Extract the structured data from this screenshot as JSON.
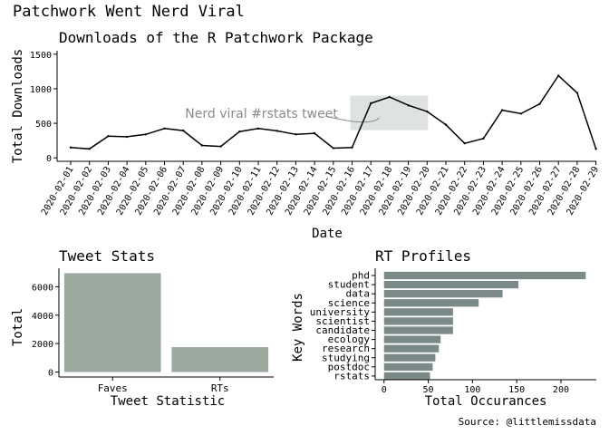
{
  "figure": {
    "title": "Patchwork Went Nerd Viral",
    "caption": "Source: @littlemissdata"
  },
  "chart_data": [
    {
      "type": "line",
      "title": "Downloads of the R Patchwork Package",
      "xlabel": "Date",
      "ylabel": "Total Downloads",
      "x": [
        "2020-02-01",
        "2020-02-02",
        "2020-02-03",
        "2020-02-04",
        "2020-02-05",
        "2020-02-06",
        "2020-02-07",
        "2020-02-08",
        "2020-02-09",
        "2020-02-10",
        "2020-02-11",
        "2020-02-12",
        "2020-02-13",
        "2020-02-14",
        "2020-02-15",
        "2020-02-16",
        "2020-02-17",
        "2020-02-18",
        "2020-02-19",
        "2020-02-20",
        "2020-02-21",
        "2020-02-22",
        "2020-02-23",
        "2020-02-24",
        "2020-02-25",
        "2020-02-26",
        "2020-02-27",
        "2020-02-28",
        "2020-02-29"
      ],
      "values": [
        150,
        130,
        315,
        305,
        340,
        425,
        395,
        180,
        165,
        380,
        425,
        390,
        340,
        355,
        140,
        150,
        790,
        880,
        760,
        670,
        480,
        210,
        280,
        690,
        640,
        780,
        1190,
        940,
        130
      ],
      "ylim": [
        -50,
        1550
      ],
      "yticks": [
        0,
        500,
        1000,
        1500
      ],
      "annotation": {
        "text": "Nerd viral #rstats tweet",
        "highlight_x": [
          "2020-02-16",
          "2020-02-20"
        ],
        "highlight_y": [
          400,
          900
        ],
        "arrow_to": [
          "2020-02-16",
          580
        ],
        "text_at": [
          "2020-02-10",
          630
        ]
      }
    },
    {
      "type": "bar",
      "title": "Tweet Stats",
      "xlabel": "Tweet Statistic",
      "ylabel": "Total",
      "categories": [
        "Faves",
        "RTs"
      ],
      "values": [
        6950,
        1750
      ],
      "ylim": [
        -350,
        7300
      ],
      "yticks": [
        0,
        2000,
        4000,
        6000
      ]
    },
    {
      "type": "bar",
      "orientation": "horizontal",
      "title": "RT Profiles",
      "xlabel": "Total Occurances",
      "ylabel": "Key Words",
      "categories": [
        "phd",
        "student",
        "data",
        "science",
        "university",
        "scientist",
        "candidate",
        "ecology",
        "research",
        "studying",
        "postdoc",
        "rstats"
      ],
      "values": [
        228,
        152,
        134,
        107,
        78,
        78,
        78,
        64,
        62,
        58,
        55,
        52
      ],
      "xlim": [
        -10,
        240
      ],
      "xticks": [
        0,
        50,
        100,
        150,
        200
      ]
    }
  ],
  "colors": {
    "line": "#000000",
    "highlight": "#dfe3df",
    "annotation": "#8a8a8a",
    "tweet_bars": "#9ba89e",
    "profile_bars": "#7b8a88",
    "axis": "#000000"
  }
}
